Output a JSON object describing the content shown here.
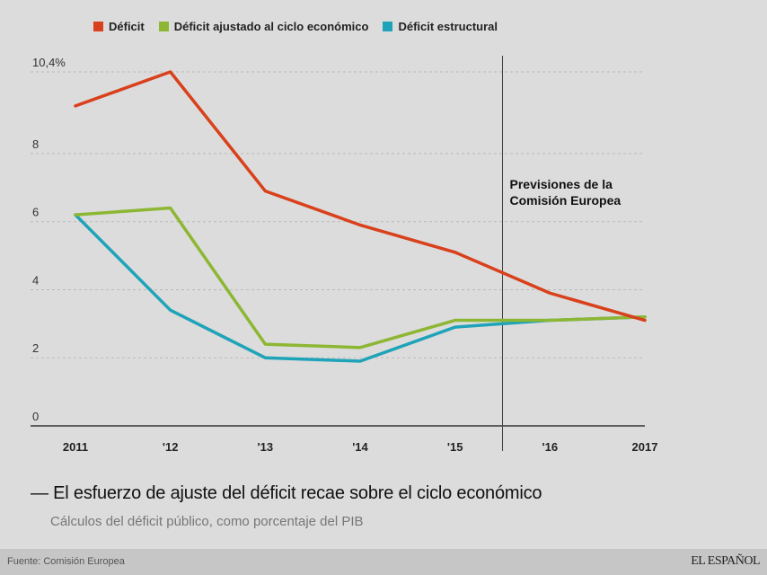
{
  "chart_data": {
    "type": "line",
    "title": "— El esfuerzo de ajuste del déficit recae sobre el ciclo económico",
    "subtitle": "Cálculos del déficit público, como porcentaje del PIB",
    "xlabel": "",
    "ylabel": "",
    "categories": [
      "2011",
      "'12",
      "'13",
      "'14",
      "'15",
      "'16",
      "2017"
    ],
    "ylim": [
      0,
      10.4
    ],
    "yticks": [
      {
        "value": 0,
        "label": "0"
      },
      {
        "value": 2,
        "label": "2"
      },
      {
        "value": 4,
        "label": "4"
      },
      {
        "value": 6,
        "label": "6"
      },
      {
        "value": 8,
        "label": "8"
      },
      {
        "value": 10.4,
        "label": "10,4%"
      }
    ],
    "grid": true,
    "legend_position": "top-left",
    "series": [
      {
        "name": "Déficit",
        "color": "#d9401c",
        "values": [
          9.4,
          10.4,
          6.9,
          5.9,
          5.1,
          3.9,
          3.1
        ]
      },
      {
        "name": "Déficit ajustado al ciclo económico",
        "color": "#8db733",
        "values": [
          6.2,
          6.4,
          2.4,
          2.3,
          3.1,
          3.1,
          3.2
        ]
      },
      {
        "name": "Déficit estructural",
        "color": "#1fa3b8",
        "values": [
          6.2,
          3.4,
          2.0,
          1.9,
          2.9,
          3.1,
          3.2
        ]
      }
    ],
    "annotations": [
      {
        "text_lines": [
          "Previsiones de la",
          "Comisión Europea"
        ],
        "divider_between": [
          "'15",
          "'16"
        ]
      }
    ]
  },
  "footer": {
    "source": "Fuente: Comisión Europea",
    "brand": "EL ESPAÑOL"
  }
}
